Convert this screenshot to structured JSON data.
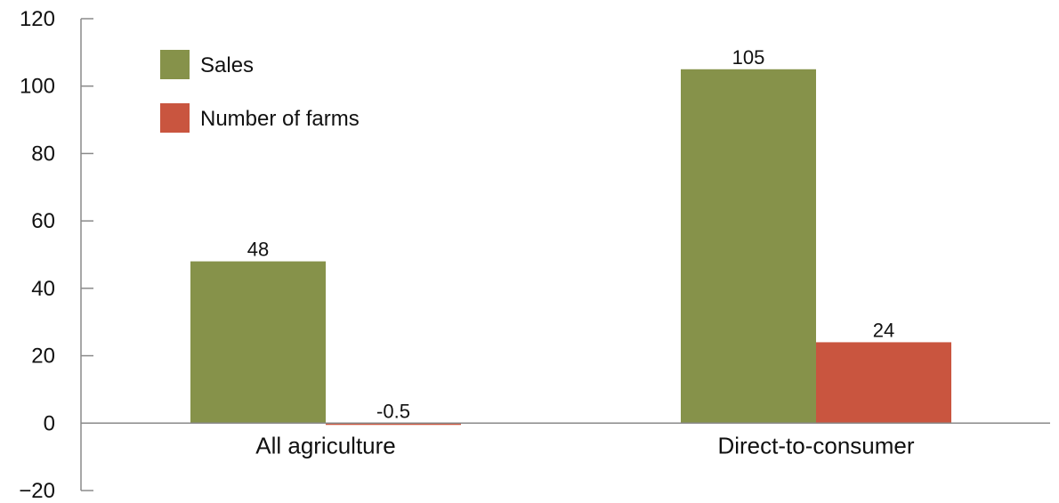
{
  "chart_data": {
    "type": "bar",
    "categories": [
      "All agriculture",
      "Direct-to-consumer"
    ],
    "series": [
      {
        "name": "Sales",
        "color": "#86924a",
        "values": [
          48,
          105
        ],
        "labels": [
          "48",
          "105"
        ]
      },
      {
        "name": "Number of farms",
        "color": "#c9553f",
        "values": [
          -0.5,
          24
        ],
        "labels": [
          "-0.5",
          "24"
        ]
      }
    ],
    "ylim": [
      -20,
      120
    ],
    "yticks": [
      120,
      100,
      80,
      60,
      40,
      20,
      0,
      -20
    ],
    "ytick_labels": [
      "120",
      "100",
      "80",
      "60",
      "40",
      "20",
      "0",
      "−20"
    ],
    "legend_position": "top-left",
    "grid": false,
    "title": "",
    "xlabel": "",
    "ylabel": ""
  }
}
